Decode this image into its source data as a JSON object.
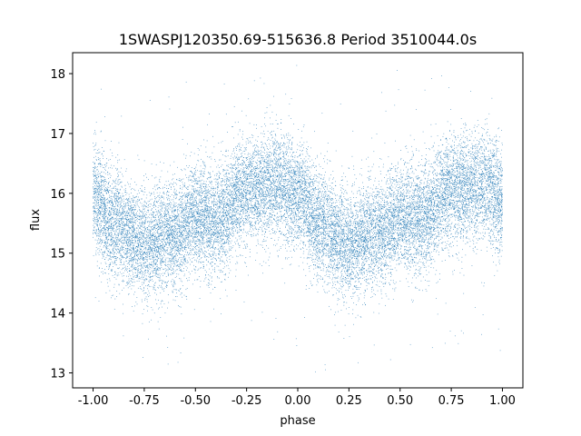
{
  "chart_data": {
    "type": "scatter",
    "title": "1SWASPJ120350.69-515636.8 Period 3510044.0s",
    "xlabel": "phase",
    "ylabel": "flux",
    "xlim": [
      -1.1,
      1.1
    ],
    "ylim": [
      12.75,
      18.35
    ],
    "xticks": [
      -1.0,
      -0.75,
      -0.5,
      -0.25,
      0.0,
      0.25,
      0.5,
      0.75,
      1.0
    ],
    "xtick_labels": [
      "-1.00",
      "-0.75",
      "-0.50",
      "-0.25",
      "0.00",
      "0.25",
      "0.50",
      "0.75",
      "1.00"
    ],
    "yticks": [
      13,
      14,
      15,
      16,
      17,
      18
    ],
    "ytick_labels": [
      "13",
      "14",
      "15",
      "16",
      "17",
      "18"
    ],
    "grid": false,
    "point_color": "#1f77b4",
    "marker": "small dots",
    "x_range": [
      -1.0,
      1.0
    ],
    "mean_trend": {
      "x": [
        -1.0,
        -0.9,
        -0.75,
        -0.6,
        -0.5,
        -0.4,
        -0.25,
        -0.1,
        0.0,
        0.1,
        0.25,
        0.4,
        0.5,
        0.6,
        0.75,
        0.9,
        1.0
      ],
      "y": [
        15.9,
        15.5,
        15.15,
        15.3,
        15.6,
        15.55,
        16.05,
        16.15,
        15.95,
        15.5,
        15.15,
        15.35,
        15.6,
        15.55,
        16.05,
        16.15,
        15.9
      ]
    },
    "scatter_sigma": 0.45,
    "n_points_approx": 20000
  }
}
